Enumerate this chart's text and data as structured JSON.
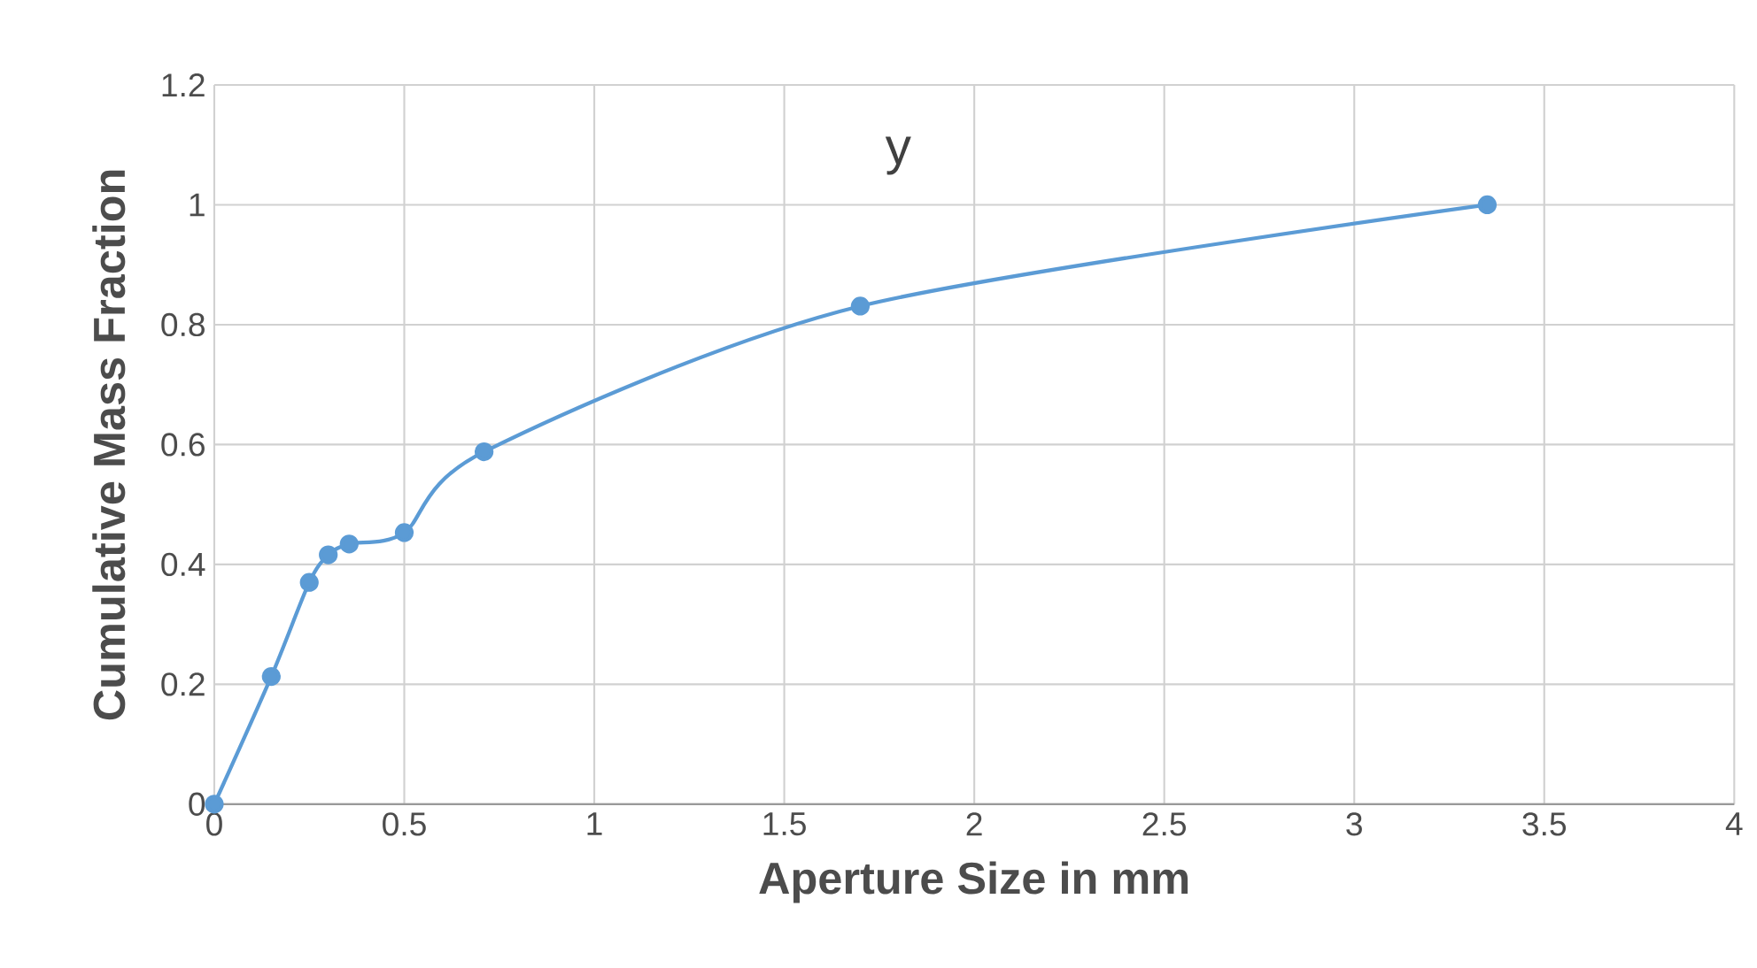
{
  "chart_data": {
    "type": "line",
    "title": "y",
    "xlabel": "Aperture Size in mm",
    "ylabel": "Cumulative Mass Fraction",
    "series": [
      {
        "color": "#5b9bd5",
        "x": [
          0,
          0.15,
          0.25,
          0.3,
          0.355,
          0.5,
          0.71,
          1.7,
          3.35
        ],
        "values": [
          0,
          0.213,
          0.37,
          0.416,
          0.434,
          0.453,
          0.588,
          0.831,
          1.0
        ]
      }
    ],
    "xlim": [
      0,
      4
    ],
    "xticks": [
      0,
      0.5,
      1,
      1.5,
      2,
      2.5,
      3,
      3.5,
      4
    ],
    "ylim": [
      0,
      1.2
    ],
    "yticks": [
      0,
      0.2,
      0.4,
      0.6,
      0.8,
      1,
      1.2
    ],
    "grid": true,
    "marker": "circle",
    "line_style": "solid"
  }
}
